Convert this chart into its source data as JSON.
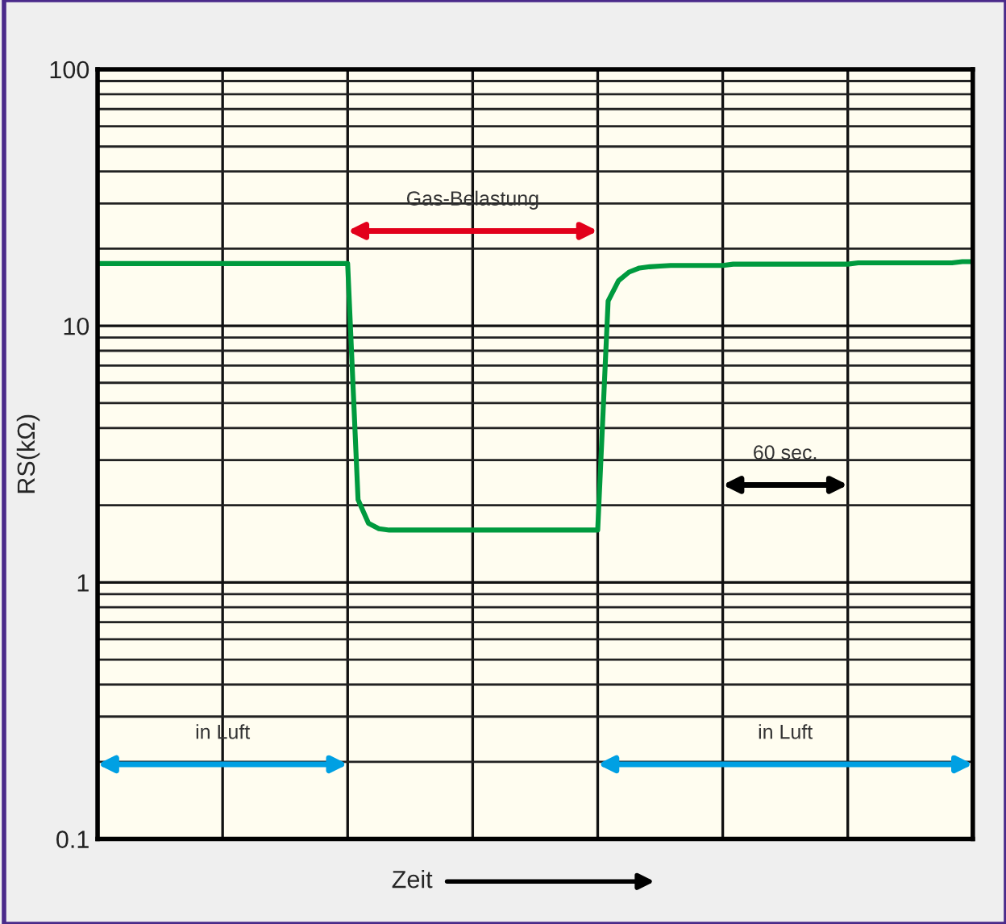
{
  "chart_data": {
    "type": "line",
    "xlabel": "Zeit",
    "ylabel": "RS(kΩ)",
    "categories": [
      null,
      null,
      null,
      null,
      null,
      null,
      null,
      null,
      null,
      null,
      null,
      null,
      null,
      null,
      null,
      null,
      null,
      null,
      null,
      null,
      null,
      null,
      null,
      null,
      null,
      null,
      null,
      null,
      null,
      null,
      null,
      null,
      null,
      null,
      null,
      null,
      null,
      null,
      null,
      null,
      null,
      null,
      null,
      null,
      null,
      null,
      null,
      null,
      null,
      null,
      null,
      null,
      null,
      null,
      null,
      null,
      null,
      null,
      null,
      null,
      null,
      null,
      null,
      null,
      null,
      null,
      null,
      null,
      null,
      null,
      null,
      null,
      null,
      null,
      null,
      null,
      null,
      null,
      null,
      null,
      null,
      null,
      null,
      null,
      null
    ],
    "series": [
      {
        "color": "#009a3e",
        "values": [
          17.5,
          17.5,
          17.5,
          17.5,
          17.5,
          17.5,
          17.5,
          17.5,
          17.5,
          17.5,
          17.5,
          17.5,
          17.5,
          17.5,
          17.5,
          17.5,
          17.5,
          17.5,
          17.5,
          17.5,
          17.5,
          17.5,
          17.5,
          17.5,
          17.5,
          2.1,
          1.7,
          1.62,
          1.6,
          1.6,
          1.6,
          1.6,
          1.6,
          1.6,
          1.6,
          1.6,
          1.6,
          1.6,
          1.6,
          1.6,
          1.6,
          1.6,
          1.6,
          1.6,
          1.6,
          1.6,
          1.6,
          1.6,
          1.6,
          12.5,
          15,
          16.2,
          16.8,
          17,
          17.1,
          17.2,
          17.2,
          17.2,
          17.2,
          17.2,
          17.2,
          17.4,
          17.4,
          17.4,
          17.4,
          17.4,
          17.4,
          17.4,
          17.4,
          17.4,
          17.4,
          17.4,
          17.4,
          17.6,
          17.6,
          17.6,
          17.6,
          17.6,
          17.6,
          17.6,
          17.6,
          17.6,
          17.6,
          17.8,
          17.8
        ]
      }
    ],
    "log": true,
    "ylim": [
      0.1,
      100
    ],
    "yticks": [
      0.1,
      1,
      10,
      100
    ],
    "grid": true,
    "marker": "none",
    "line_style": "solid",
    "annotations": [
      "Gas-Belastung",
      "in Luft",
      "in Luft",
      "60 sec."
    ]
  }
}
